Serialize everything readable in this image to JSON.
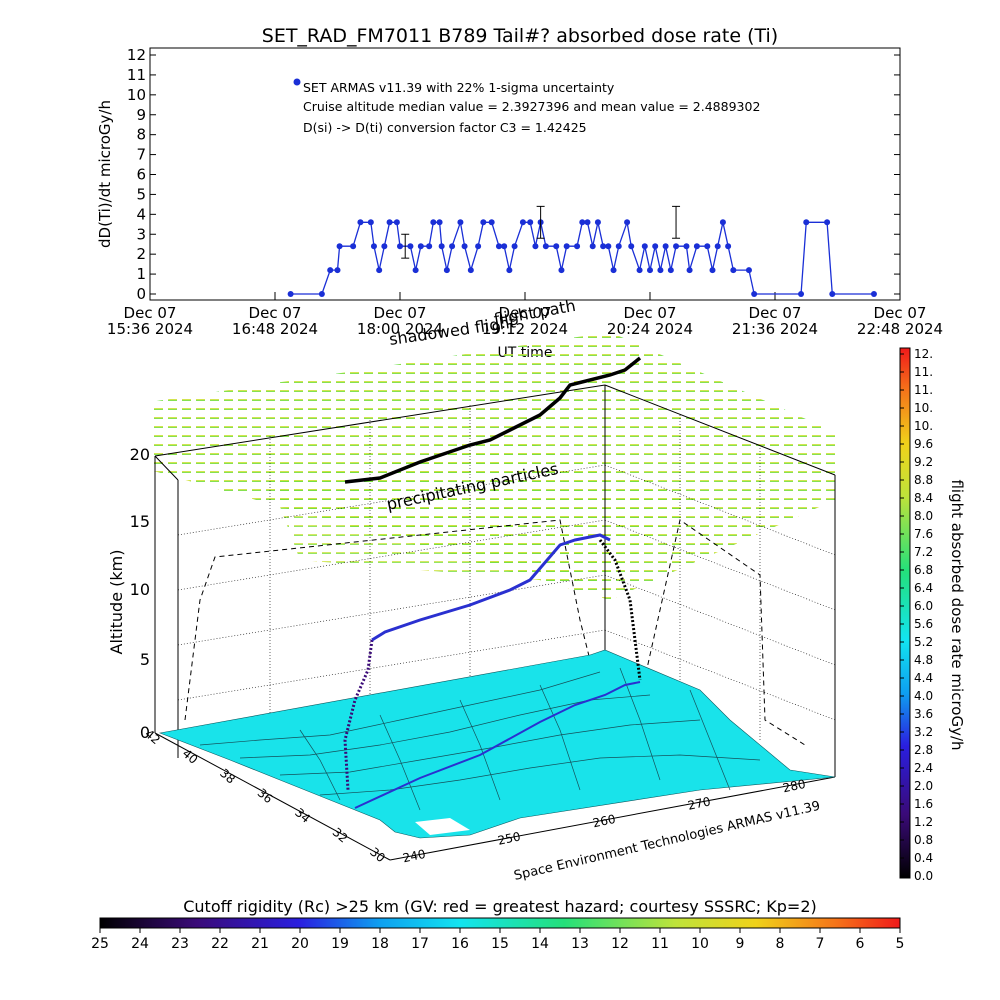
{
  "colors": {
    "series": "#1a2fd6",
    "axis": "#000000",
    "map_fill": "#19e3ea",
    "black": "#000000"
  },
  "chart_data": [
    {
      "type": "line",
      "title": "SET_RAD_FM7011  B789 Tail#? absorbed dose rate (Ti)",
      "xlabel": "UT time",
      "ylabel": "dD(Ti)/dt microGy/h",
      "ylim": [
        0,
        12
      ],
      "y_ticks": [
        "0",
        "1",
        "2",
        "3",
        "4",
        "5",
        "6",
        "7",
        "8",
        "9",
        "10",
        "11",
        "12"
      ],
      "x_ticks": [
        {
          "line1": "Dec 07",
          "line2": "15:36 2024"
        },
        {
          "line1": "Dec 07",
          "line2": "16:48 2024"
        },
        {
          "line1": "Dec 07",
          "line2": "18:00 2024"
        },
        {
          "line1": "Dec 07",
          "line2": "19:12 2024"
        },
        {
          "line1": "Dec 07",
          "line2": "20:24 2024"
        },
        {
          "line1": "Dec 07",
          "line2": "21:36 2024"
        },
        {
          "line1": "Dec 07",
          "line2": "22:48 2024"
        }
      ],
      "xlim_hours": [
        15.6,
        22.8
      ],
      "annotations": [
        "SET ARMAS v11.39 with 22% 1-sigma uncertainty",
        "Cruise altitude median value = 2.3927396 and mean value = 2.4889302",
        "D(si) -> D(ti) conversion factor C3 = 1.42425"
      ],
      "series": [
        {
          "name": "SET ARMAS v11.39 with 22% 1-sigma uncertainty",
          "points": [
            [
              16.95,
              0
            ],
            [
              17.25,
              0
            ],
            [
              17.33,
              1.2
            ],
            [
              17.4,
              1.2
            ],
            [
              17.42,
              2.4
            ],
            [
              17.55,
              2.4
            ],
            [
              17.62,
              3.6
            ],
            [
              17.72,
              3.6
            ],
            [
              17.75,
              2.4
            ],
            [
              17.8,
              1.2
            ],
            [
              17.85,
              2.4
            ],
            [
              17.9,
              3.6
            ],
            [
              17.97,
              3.6
            ],
            [
              18.0,
              2.4
            ],
            [
              18.1,
              2.4
            ],
            [
              18.15,
              1.2
            ],
            [
              18.2,
              2.4
            ],
            [
              18.28,
              2.4
            ],
            [
              18.32,
              3.6
            ],
            [
              18.38,
              3.6
            ],
            [
              18.4,
              2.4
            ],
            [
              18.45,
              1.2
            ],
            [
              18.5,
              2.4
            ],
            [
              18.58,
              3.6
            ],
            [
              18.62,
              2.4
            ],
            [
              18.68,
              1.2
            ],
            [
              18.75,
              2.4
            ],
            [
              18.8,
              3.6
            ],
            [
              18.88,
              3.6
            ],
            [
              18.95,
              2.4
            ],
            [
              19.0,
              2.4
            ],
            [
              19.05,
              1.2
            ],
            [
              19.1,
              2.4
            ],
            [
              19.18,
              3.6
            ],
            [
              19.25,
              3.6
            ],
            [
              19.3,
              2.4
            ],
            [
              19.35,
              3.6
            ],
            [
              19.4,
              2.4
            ],
            [
              19.5,
              2.4
            ],
            [
              19.55,
              1.2
            ],
            [
              19.6,
              2.4
            ],
            [
              19.7,
              2.4
            ],
            [
              19.75,
              3.6
            ],
            [
              19.8,
              3.6
            ],
            [
              19.85,
              2.4
            ],
            [
              19.9,
              3.6
            ],
            [
              19.95,
              2.4
            ],
            [
              20.0,
              2.4
            ],
            [
              20.05,
              1.2
            ],
            [
              20.1,
              2.4
            ],
            [
              20.18,
              3.6
            ],
            [
              20.22,
              2.4
            ],
            [
              20.3,
              1.2
            ],
            [
              20.35,
              2.4
            ],
            [
              20.4,
              1.2
            ],
            [
              20.45,
              2.4
            ],
            [
              20.5,
              1.2
            ],
            [
              20.55,
              2.4
            ],
            [
              20.6,
              1.2
            ],
            [
              20.65,
              2.4
            ],
            [
              20.75,
              2.4
            ],
            [
              20.78,
              1.2
            ],
            [
              20.85,
              2.4
            ],
            [
              20.95,
              2.4
            ],
            [
              21.0,
              1.2
            ],
            [
              21.05,
              2.4
            ],
            [
              21.1,
              3.6
            ],
            [
              21.15,
              2.4
            ],
            [
              21.2,
              1.2
            ],
            [
              21.35,
              1.2
            ],
            [
              21.4,
              0
            ],
            [
              21.85,
              0
            ],
            [
              21.9,
              3.6
            ],
            [
              22.1,
              3.6
            ],
            [
              22.15,
              0
            ],
            [
              22.55,
              0
            ]
          ]
        }
      ],
      "error_bars": [
        {
          "x": 18.05,
          "low": 1.8,
          "high": 3.0
        },
        {
          "x": 19.35,
          "low": 2.8,
          "high": 4.4
        },
        {
          "x": 20.65,
          "low": 2.8,
          "high": 4.4
        }
      ]
    },
    {
      "type": "scatter",
      "title": "",
      "zlabel": "Altitude (km)",
      "z_ticks": [
        "0",
        "5",
        "10",
        "15",
        "20"
      ],
      "lat_ticks": [
        "42",
        "40",
        "38",
        "36",
        "34",
        "32",
        "30"
      ],
      "lon_ticks": [
        "240",
        "250",
        "260",
        "270",
        "280"
      ],
      "labels": {
        "flight_path": "flight path",
        "shadow": "shadowed flight",
        "precip": "precipitating particles",
        "credit": "Space Environment Technologies ARMAS v11.39"
      }
    },
    {
      "type": "heatmap",
      "title": "flight absorbed dose rate microGy/h",
      "range": [
        0.0,
        12.0
      ],
      "tick_labels": [
        "0.0",
        "0.4",
        "0.8",
        "1.2",
        "1.6",
        "2.0",
        "2.4",
        "2.8",
        "3.2",
        "3.6",
        "4.0",
        "4.4",
        "4.8",
        "5.2",
        "5.6",
        "6.0",
        "6.4",
        "6.8",
        "7.2",
        "7.6",
        "8.0",
        "8.4",
        "8.8",
        "9.2",
        "9.6",
        "10.",
        "10.",
        "11.",
        "11.",
        "12."
      ]
    },
    {
      "type": "heatmap",
      "title": "Cutoff rigidity (Rc) >25 km (GV: red = greatest hazard; courtesy SSSRC; Kp=2)",
      "range": [
        25,
        5
      ],
      "tick_labels": [
        "25",
        "24",
        "23",
        "22",
        "21",
        "20",
        "19",
        "18",
        "17",
        "16",
        "15",
        "14",
        "13",
        "12",
        "11",
        "10",
        "9",
        "8",
        "7",
        "6",
        "5"
      ]
    }
  ]
}
